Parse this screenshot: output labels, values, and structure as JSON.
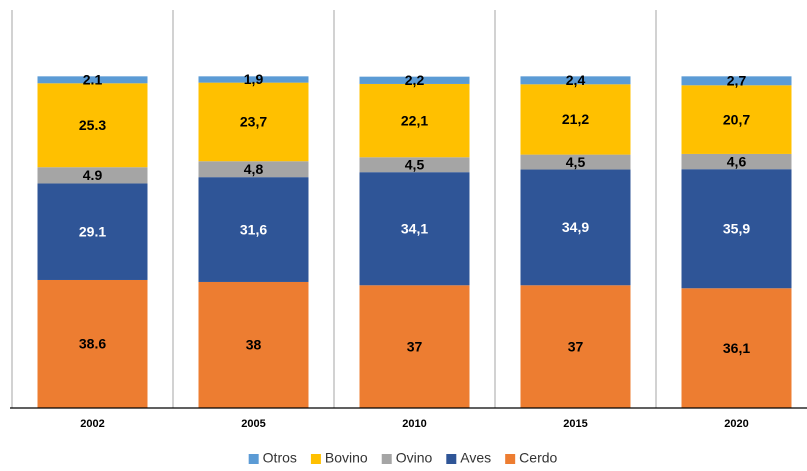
{
  "chart_data": {
    "type": "stacked_bar",
    "categories": [
      "2002",
      "2005",
      "2010",
      "2015",
      "2020"
    ],
    "ylim": [
      0,
      120
    ],
    "legend": "bottom",
    "series": [
      {
        "name": "Cerdo",
        "color": "#ed7d31",
        "label_color": "#000000",
        "values": [
          38.6,
          38,
          37,
          37,
          36.1
        ],
        "value_labels": [
          "38.6",
          "38",
          "37",
          "37",
          "36,1"
        ]
      },
      {
        "name": "Aves",
        "color": "#2f5597",
        "label_color": "#ffffff",
        "values": [
          29.1,
          31.6,
          34.1,
          34.9,
          35.9
        ],
        "value_labels": [
          "29.1",
          "31,6",
          "34,1",
          "34,9",
          "35,9"
        ]
      },
      {
        "name": "Ovino",
        "color": "#a5a5a5",
        "label_color": "#000000",
        "values": [
          4.9,
          4.8,
          4.5,
          4.5,
          4.6
        ],
        "value_labels": [
          "4.9",
          "4,8",
          "4,5",
          "4,5",
          "4,6"
        ]
      },
      {
        "name": "Bovino",
        "color": "#ffc000",
        "label_color": "#000000",
        "values": [
          25.3,
          23.7,
          22.1,
          21.2,
          20.7
        ],
        "value_labels": [
          "25.3",
          "23,7",
          "22,1",
          "21,2",
          "20,7"
        ]
      },
      {
        "name": "Otros",
        "color": "#5b9bd5",
        "label_color": "#000000",
        "values": [
          2.1,
          1.9,
          2.2,
          2.4,
          2.7
        ],
        "value_labels": [
          "2.1",
          "1,9",
          "2,2",
          "2,4",
          "2,7"
        ]
      }
    ]
  }
}
